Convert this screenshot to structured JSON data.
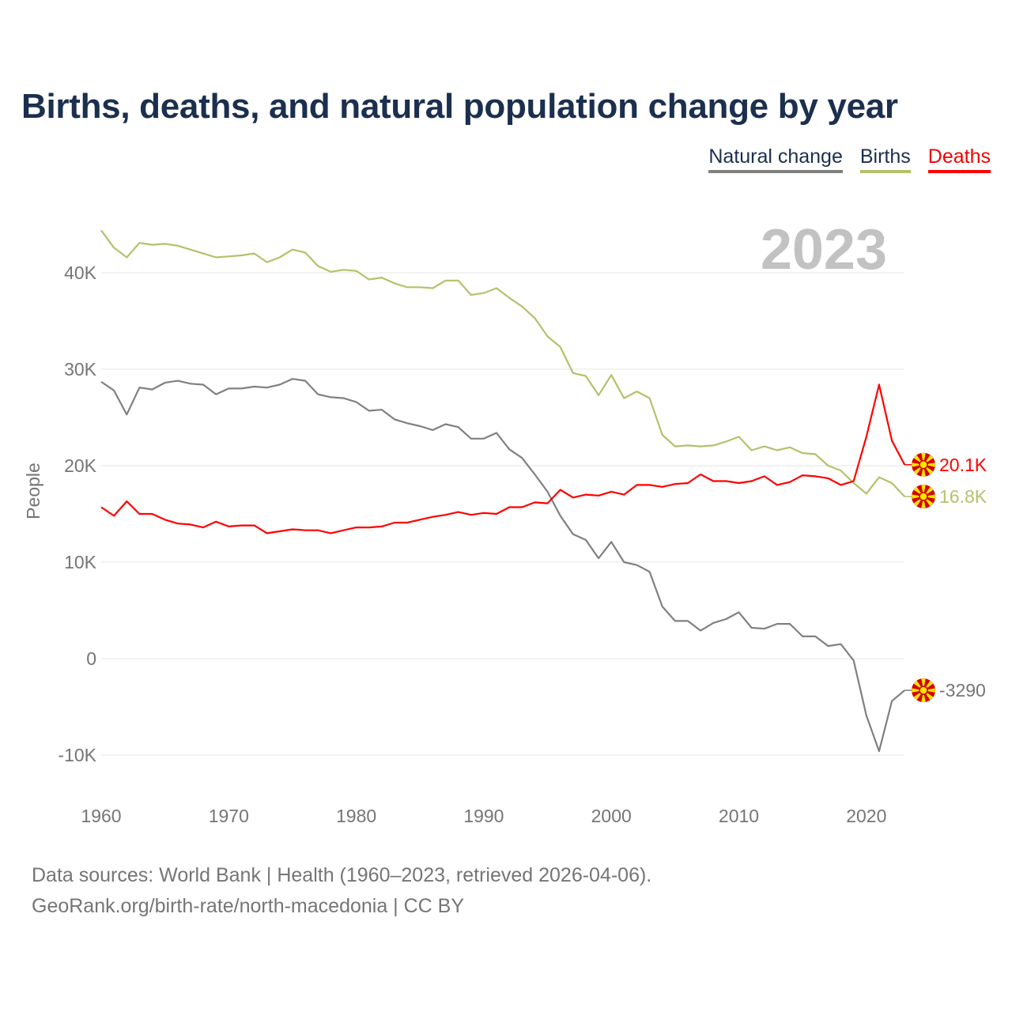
{
  "chart_data": {
    "type": "line",
    "title": "Births, deaths, and natural population change by year",
    "xlabel": "",
    "ylabel": "People",
    "xlim": [
      1960,
      2023
    ],
    "ylim": [
      -12000,
      45000
    ],
    "x_ticks": [
      1960,
      1970,
      1980,
      1990,
      2000,
      2010,
      2020
    ],
    "y_ticks": [
      -10000,
      0,
      10000,
      20000,
      30000,
      40000
    ],
    "y_tick_labels": [
      "-10K",
      "0",
      "10K",
      "20K",
      "30K",
      "40K"
    ],
    "x_tick_labels": [
      "1960",
      "1970",
      "1980",
      "1990",
      "2000",
      "2010",
      "2020"
    ],
    "year_watermark": "2023",
    "grid": true,
    "legend_position": "top-right",
    "x_start": 1960,
    "series": [
      {
        "name": "Natural change",
        "color": "#808080",
        "end_label": "-3290",
        "values": [
          28700,
          27800,
          25300,
          28100,
          27900,
          28600,
          28800,
          28500,
          28400,
          27400,
          28000,
          28000,
          28200,
          28100,
          28400,
          29000,
          28800,
          27400,
          27100,
          27000,
          26600,
          25700,
          25800,
          24800,
          24400,
          24100,
          23700,
          24300,
          24000,
          22800,
          22800,
          23400,
          21700,
          20800,
          19100,
          17300,
          14800,
          12900,
          12300,
          10400,
          12100,
          10000,
          9700,
          9000,
          5400,
          3900,
          3900,
          2900,
          3700,
          4100,
          4800,
          3200,
          3100,
          3600,
          3600,
          2300,
          2300,
          1300,
          1500,
          -200,
          -5900,
          -9600,
          -4400,
          -3290
        ]
      },
      {
        "name": "Births",
        "color": "#b3c26a",
        "end_label": "16.8K",
        "values": [
          44400,
          42600,
          41600,
          43100,
          42900,
          43000,
          42800,
          42400,
          42000,
          41600,
          41700,
          41800,
          42000,
          41100,
          41600,
          42400,
          42100,
          40700,
          40100,
          40300,
          40200,
          39300,
          39500,
          38900,
          38500,
          38500,
          38400,
          39200,
          39200,
          37700,
          37900,
          38400,
          37400,
          36500,
          35300,
          33400,
          32300,
          29600,
          29300,
          27300,
          29400,
          27000,
          27700,
          27000,
          23200,
          22000,
          22100,
          22000,
          22100,
          22500,
          23000,
          21600,
          22000,
          21600,
          21900,
          21300,
          21200,
          20000,
          19500,
          18200,
          17100,
          18800,
          18200,
          16800
        ]
      },
      {
        "name": "Deaths",
        "color": "#ff0000",
        "end_label": "20.1K",
        "values": [
          15700,
          14800,
          16300,
          15000,
          15000,
          14400,
          14000,
          13900,
          13600,
          14200,
          13700,
          13800,
          13800,
          13000,
          13200,
          13400,
          13300,
          13300,
          13000,
          13300,
          13600,
          13600,
          13700,
          14100,
          14100,
          14400,
          14700,
          14900,
          15200,
          14900,
          15100,
          15000,
          15700,
          15700,
          16200,
          16100,
          17500,
          16700,
          17000,
          16900,
          17300,
          17000,
          18000,
          18000,
          17800,
          18100,
          18200,
          19100,
          18400,
          18400,
          18200,
          18400,
          18900,
          18000,
          18300,
          19000,
          18900,
          18700,
          18000,
          18400,
          23000,
          28400,
          22600,
          20100
        ]
      }
    ]
  },
  "legend": [
    {
      "label": "Natural change",
      "color": "#808080"
    },
    {
      "label": "Births",
      "color": "#b3c26a"
    },
    {
      "label": "Deaths",
      "color": "#ff0000"
    }
  ],
  "footer": {
    "line1": "Data sources: World Bank | Health (1960–2023, retrieved 2026-04-06).",
    "line2": "GeoRank.org/birth-rate/north-macedonia | CC BY"
  }
}
